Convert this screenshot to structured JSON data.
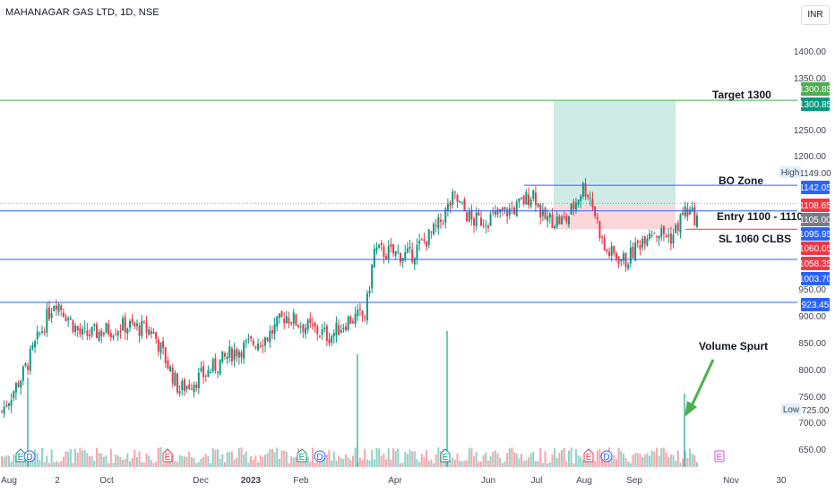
{
  "header": {
    "title": "MAHANAGAR GAS LTD, 1D, NSE",
    "currency": "INR"
  },
  "chart_data": {
    "type": "candlestick",
    "symbol": "MAHANAGAR GAS LTD",
    "interval": "1D",
    "exchange": "NSE",
    "y_ticks": [
      "1400.00",
      "1350.00",
      "1250.00",
      "1200.00",
      "950.00",
      "900.00",
      "850.00",
      "800.00",
      "750.00",
      "700.00",
      "650.00"
    ],
    "x_ticks": [
      "Aug",
      "2",
      "Oct",
      "Dec",
      "2023",
      "Feb",
      "Apr",
      "Jun",
      "Jul",
      "Aug",
      "Sep",
      "Nov",
      "30"
    ],
    "price_labels": [
      {
        "value": "1300.85",
        "color": "#4caf50"
      },
      {
        "value": "1300.85",
        "color": "#089981"
      },
      {
        "value": "1149.00",
        "color": "transparent"
      },
      {
        "value": "1142.05",
        "color": "#2962ff"
      },
      {
        "value": "1108.65",
        "color": "#f23645"
      },
      {
        "value": "1105.00",
        "color": "#787b86"
      },
      {
        "value": "1095.95",
        "color": "#2962ff"
      },
      {
        "value": "1060.05",
        "color": "#f23645"
      },
      {
        "value": "1058.35",
        "color": "#f23645"
      },
      {
        "value": "1003.70",
        "color": "#2962ff"
      },
      {
        "value": "923.45",
        "color": "#2962ff"
      },
      {
        "value": "725.00",
        "color": "transparent"
      }
    ],
    "side_tags": {
      "high": "High",
      "low": "Low"
    },
    "annotations": [
      "Target 1300",
      "BO Zone",
      "Entry 1100 - 1110",
      "SL 1060 CLBS",
      "Volume Spurt"
    ],
    "levels": {
      "target": 1300.85,
      "bo_zone": 1142.05,
      "entry": 1095.95,
      "sl": 1060.05,
      "support1": 1003.7,
      "support2": 923.45
    },
    "position": {
      "entry": 1105,
      "target": 1300.85,
      "stop": 1060
    },
    "event_markers": [
      "E",
      "D",
      "E",
      "E",
      "D",
      "E",
      "E",
      "D",
      "E"
    ],
    "colors": {
      "up": "#089981",
      "down": "#f23645",
      "level": "#2962ff",
      "target": "#4caf50"
    }
  }
}
